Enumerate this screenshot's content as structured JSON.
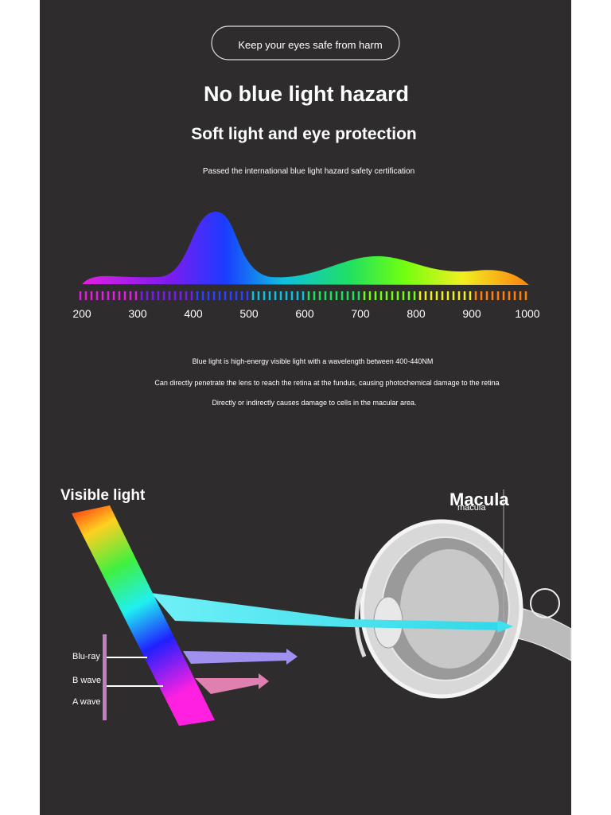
{
  "header": {
    "badge": "Keep your eyes safe from harm",
    "title": "No blue light hazard",
    "subtitle": "Soft light and eye protection",
    "note": "Passed the international blue light hazard safety certification"
  },
  "spectrum": {
    "scale_labels": [
      200,
      300,
      400,
      500,
      600,
      700,
      800,
      900,
      1000
    ]
  },
  "description": [
    "Blue light is high-energy visible light with a wavelength between 400-440NM",
    "Can directly penetrate the lens to reach the retina at the fundus, causing photochemical damage to the retina",
    "Directly or indirectly causes damage to cells in the macular area."
  ],
  "diagram": {
    "visible_light": "Visible light",
    "macula": "Macula",
    "macula_small": "macula",
    "waves": [
      "Blu-ray",
      "B wave",
      "A wave"
    ]
  }
}
